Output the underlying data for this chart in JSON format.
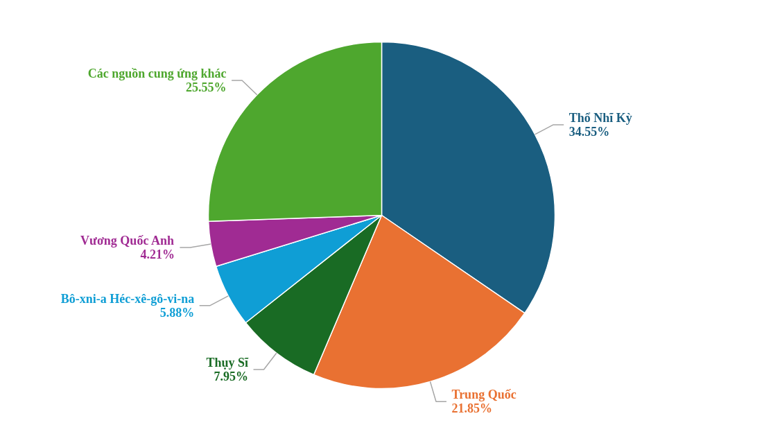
{
  "chart_data": {
    "type": "pie",
    "categories": [
      "Thổ Nhĩ Kỳ",
      "Trung Quốc",
      "Thụy Sĩ",
      "Bô-xni-a Héc-xê-gô-vi-na",
      "Vương Quốc Anh",
      "Các nguồn cung ứng khác"
    ],
    "values": [
      34.55,
      21.85,
      7.95,
      5.88,
      4.21,
      25.55
    ],
    "value_labels": [
      "34.55%",
      "21.85%",
      "7.95%",
      "5.88%",
      "4.21%",
      "25.55%"
    ],
    "colors": [
      "#1a5e80",
      "#e97132",
      "#196b24",
      "#0f9ed5",
      "#a02b93",
      "#4ea72e"
    ]
  }
}
